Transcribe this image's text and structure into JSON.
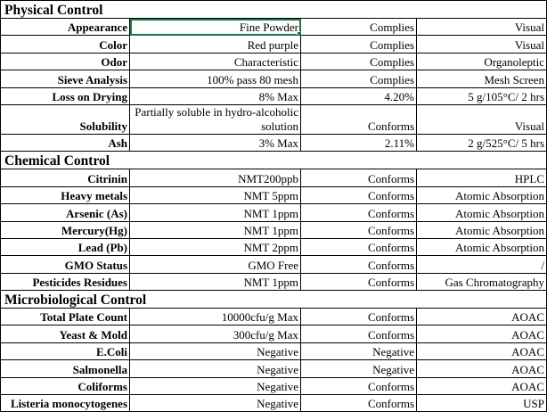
{
  "selection_color": "#217346",
  "sections": [
    {
      "title": "Physical Control",
      "rows": [
        {
          "item": "Appearance",
          "spec": "Fine Powder",
          "result": "Complies",
          "method": "Visual",
          "selected": true
        },
        {
          "item": "Color",
          "spec": "Red purple",
          "result": "Complies",
          "method": "Visual"
        },
        {
          "item": "Odor",
          "spec": "Characteristic",
          "result": "Complies",
          "method": "Organoleptic"
        },
        {
          "item": "Sieve Analysis",
          "spec": "100% pass 80 mesh",
          "result": "Complies",
          "method": "Mesh Screen"
        },
        {
          "item": "Loss on Drying",
          "spec": "8% Max",
          "result": "4.20%",
          "method": "5 g/105°C/ 2 hrs"
        },
        {
          "item": "Solubility",
          "spec": "Partially soluble in hydro-alcoholic solution",
          "result": "Conforms",
          "method": "Visual",
          "tall": true
        },
        {
          "item": "Ash",
          "spec": "3% Max",
          "result": "2.11%",
          "method": "2 g/525°C/ 5 hrs"
        }
      ]
    },
    {
      "title": "Chemical Control",
      "rows": [
        {
          "item": "Citrinin",
          "spec": "NMT200ppb",
          "result": "Conforms",
          "method": "HPLC"
        },
        {
          "item": "Heavy metals",
          "spec": "NMT 5ppm",
          "result": "Conforms",
          "method": "Atomic Absorption"
        },
        {
          "item": "Arsenic (As)",
          "spec": "NMT 1ppm",
          "result": "Conforms",
          "method": "Atomic Absorption"
        },
        {
          "item": "Mercury(Hg)",
          "spec": "NMT 1ppm",
          "result": "Conforms",
          "method": "Atomic Absorption"
        },
        {
          "item": "Lead (Pb)",
          "spec": "NMT 2ppm",
          "result": "Conforms",
          "method": "Atomic Absorption"
        },
        {
          "item": "GMO Status",
          "spec": "GMO Free",
          "result": "Conforms",
          "method": "/"
        },
        {
          "item": "Pesticides Residues",
          "spec": "NMT 1ppm",
          "result": "Conforms",
          "method": "Gas Chromatography"
        }
      ]
    },
    {
      "title": "Microbiological Control",
      "rows": [
        {
          "item": "Total Plate Count",
          "spec": "10000cfu/g Max",
          "result": "Conforms",
          "method": "AOAC"
        },
        {
          "item": "Yeast & Mold",
          "spec": "300cfu/g Max",
          "result": "Conforms",
          "method": "AOAC"
        },
        {
          "item": "E.Coli",
          "spec": "Negative",
          "result": "Negative",
          "method": "AOAC"
        },
        {
          "item": "Salmonella",
          "spec": "Negative",
          "result": "Negative",
          "method": "AOAC"
        },
        {
          "item": "Coliforms",
          "spec": "Negative",
          "result": "Conforms",
          "method": "AOAC"
        },
        {
          "item": "Listeria monocytogenes",
          "spec": "Negative",
          "result": "Conforms",
          "method": "USP"
        }
      ]
    }
  ]
}
